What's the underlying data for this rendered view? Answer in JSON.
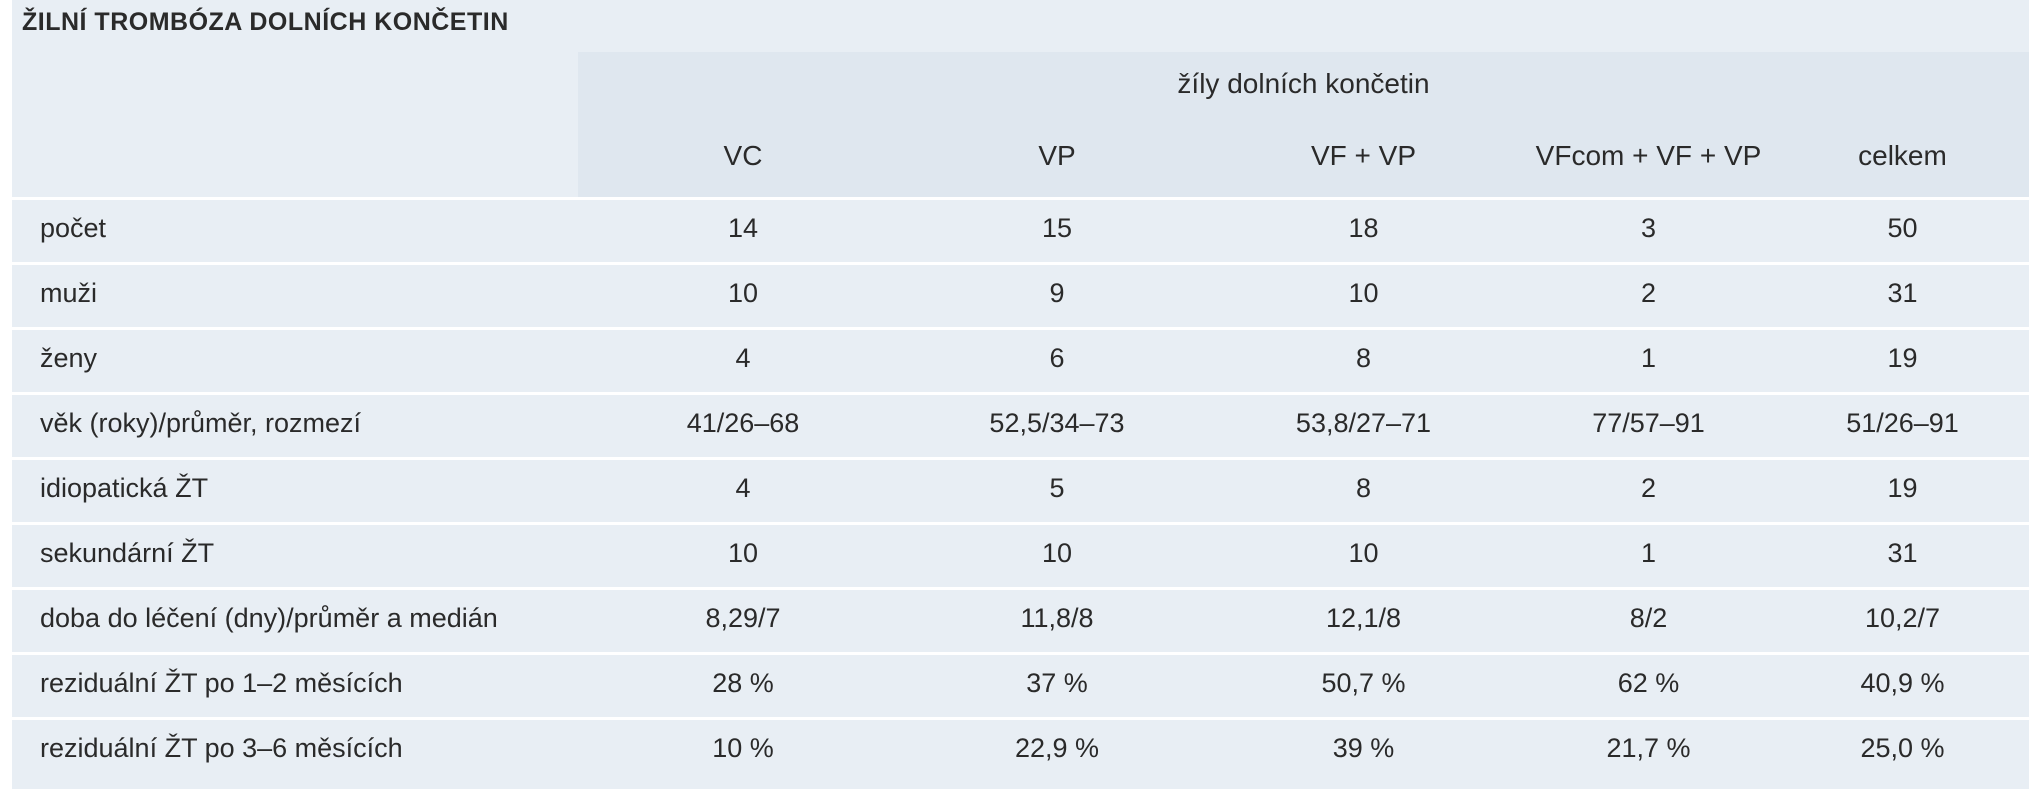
{
  "table": {
    "title": "ŽILNÍ TROMBÓZA DOLNÍCH KONČETIN",
    "group_header": "žíly dolních končetin",
    "columns": [
      "VC",
      "VP",
      "VF + VP",
      "VFcom + VF + VP",
      "celkem"
    ],
    "rows": [
      {
        "label": "počet",
        "values": [
          "14",
          "15",
          "18",
          "3",
          "50"
        ]
      },
      {
        "label": "muži",
        "values": [
          "10",
          "9",
          "10",
          "2",
          "31"
        ]
      },
      {
        "label": "ženy",
        "values": [
          "4",
          "6",
          "8",
          "1",
          "19"
        ]
      },
      {
        "label": "věk (roky)/průměr, rozmezí",
        "values": [
          "41/26–68",
          "52,5/34–73",
          "53,8/27–71",
          "77/57–91",
          "51/26–91"
        ]
      },
      {
        "label": "idiopatická ŽT",
        "values": [
          "4",
          "5",
          "8",
          "2",
          "19"
        ]
      },
      {
        "label": "sekundární ŽT",
        "values": [
          "10",
          "10",
          "10",
          "1",
          "31"
        ]
      },
      {
        "label": "doba do léčení (dny)/průměr a medián",
        "values": [
          "8,29/7",
          "11,8/8",
          "12,1/8",
          "8/2",
          "10,2/7"
        ]
      },
      {
        "label": "reziduální ŽT po 1–2 měsících",
        "values": [
          "28 %",
          "37 %",
          "50,7 %",
          "62 %",
          "40,9 %"
        ]
      },
      {
        "label": "reziduální ŽT po 3–6 měsících",
        "values": [
          "10 %",
          "22,9 %",
          "39 %",
          "21,7 %",
          "25,0 %"
        ]
      }
    ]
  }
}
